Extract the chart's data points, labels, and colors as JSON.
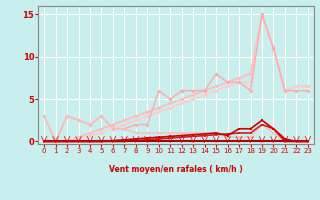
{
  "xlabel": "Vent moyen/en rafales ( km/h )",
  "bg_color": "#c8eeee",
  "grid_color": "#ffffff",
  "xlim": [
    -0.5,
    23.5
  ],
  "ylim": [
    -0.3,
    16
  ],
  "yticks": [
    0,
    5,
    10,
    15
  ],
  "xticks": [
    0,
    1,
    2,
    3,
    4,
    5,
    6,
    7,
    8,
    9,
    10,
    11,
    12,
    13,
    14,
    15,
    16,
    17,
    18,
    19,
    20,
    21,
    22,
    23
  ],
  "series": [
    {
      "x": [
        0,
        1,
        2,
        3,
        4,
        5,
        6,
        7,
        8,
        9,
        10,
        11,
        12,
        13,
        14,
        15,
        16,
        17,
        18,
        19,
        20,
        21,
        22,
        23
      ],
      "y": [
        0,
        0,
        0,
        0.5,
        1,
        1.5,
        2,
        2.5,
        3,
        3.5,
        4,
        4.5,
        5,
        5.5,
        6,
        6.5,
        7,
        7.5,
        8,
        15,
        11,
        6,
        6.5,
        6.5
      ],
      "color": "#ffbbbb",
      "lw": 1.2,
      "marker": "D",
      "ms": 2.0
    },
    {
      "x": [
        0,
        1,
        2,
        3,
        4,
        5,
        6,
        7,
        8,
        9,
        10,
        11,
        12,
        13,
        14,
        15,
        16,
        17,
        18,
        19,
        20,
        21,
        22,
        23
      ],
      "y": [
        0,
        0,
        0,
        0.3,
        0.7,
        1.0,
        1.5,
        2.0,
        2.5,
        3.0,
        3.5,
        4.0,
        4.5,
        5.0,
        5.5,
        6.0,
        6.5,
        7.0,
        7.0,
        15,
        11,
        6,
        6.5,
        6.5
      ],
      "color": "#ffcccc",
      "lw": 1.2,
      "marker": "D",
      "ms": 2.0
    },
    {
      "x": [
        0,
        1,
        2,
        3,
        4,
        5,
        6,
        7,
        8,
        9,
        10,
        11,
        12,
        13,
        14,
        15,
        16,
        17,
        18,
        19,
        20,
        21,
        22,
        23
      ],
      "y": [
        3,
        0,
        3,
        2.5,
        2,
        3,
        1.5,
        1.5,
        2,
        2,
        6,
        5,
        6,
        6,
        6,
        8,
        7,
        7,
        6,
        15,
        11,
        6,
        6,
        6
      ],
      "color": "#ffaaaa",
      "lw": 1.0,
      "marker": "D",
      "ms": 2.0
    },
    {
      "x": [
        0,
        1,
        2,
        3,
        4,
        5,
        6,
        7,
        8,
        9,
        10,
        11,
        12,
        13,
        14,
        15,
        16,
        17,
        18,
        19,
        20,
        21,
        22,
        23
      ],
      "y": [
        3,
        0,
        3,
        2.5,
        2,
        3,
        1.5,
        1.5,
        1,
        1,
        1,
        1,
        1,
        1,
        1,
        1,
        0.5,
        0.5,
        0.5,
        2,
        1,
        0,
        0,
        0
      ],
      "color": "#ffbbbb",
      "lw": 1.0,
      "marker": "D",
      "ms": 1.5
    },
    {
      "x": [
        0,
        1,
        2,
        3,
        4,
        5,
        6,
        7,
        8,
        9,
        10,
        11,
        12,
        13,
        14,
        15,
        16,
        17,
        18,
        19,
        20,
        21,
        22,
        23
      ],
      "y": [
        0,
        0,
        0,
        0,
        0,
        0,
        0,
        0,
        0.1,
        0.2,
        0.3,
        0.4,
        0.5,
        0.6,
        0.7,
        0.8,
        0.9,
        1.0,
        1.0,
        2.0,
        1.5,
        0,
        0,
        0
      ],
      "color": "#cc2222",
      "lw": 1.2,
      "marker": "s",
      "ms": 2.0
    },
    {
      "x": [
        0,
        1,
        2,
        3,
        4,
        5,
        6,
        7,
        8,
        9,
        10,
        11,
        12,
        13,
        14,
        15,
        16,
        17,
        18,
        19,
        20,
        21,
        22,
        23
      ],
      "y": [
        0,
        0,
        0,
        0,
        0,
        0,
        0,
        0,
        0,
        0,
        0,
        0,
        0,
        0,
        0,
        0,
        0,
        0,
        0,
        0,
        0,
        0,
        0,
        0
      ],
      "color": "#aa0000",
      "lw": 1.5,
      "marker": "s",
      "ms": 2.0
    },
    {
      "x": [
        0,
        1,
        2,
        3,
        4,
        5,
        6,
        7,
        8,
        9,
        10,
        11,
        12,
        13,
        14,
        15,
        16,
        17,
        18,
        19,
        20,
        21,
        22,
        23
      ],
      "y": [
        0,
        0,
        0,
        0,
        0,
        0,
        0.1,
        0.2,
        0.3,
        0.4,
        0.5,
        0.6,
        0.7,
        0.8,
        0.9,
        1.0,
        0.7,
        1.5,
        1.5,
        2.5,
        1.5,
        0.3,
        0,
        0
      ],
      "color": "#cc0000",
      "lw": 1.2,
      "marker": "s",
      "ms": 2.0
    }
  ]
}
